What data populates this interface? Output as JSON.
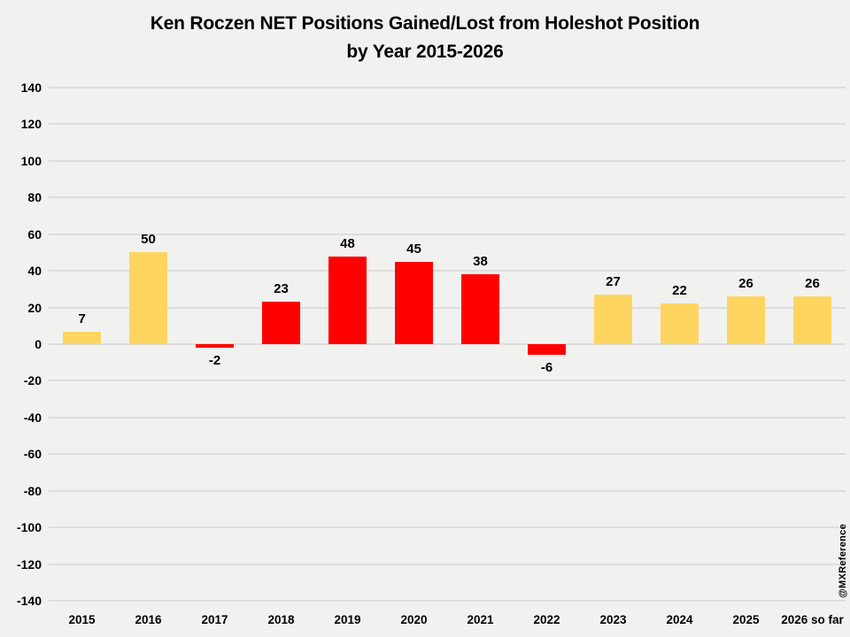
{
  "title": {
    "line1": "Ken Roczen NET Positions Gained/Lost from Holeshot Position",
    "line2": "by Year 2015-2026"
  },
  "watermark": "@MXReference",
  "chart_data": {
    "type": "bar",
    "title": "Ken Roczen NET Positions Gained/Lost from Holeshot Position by Year 2015-2026",
    "categories": [
      "2015",
      "2016",
      "2017",
      "2018",
      "2019",
      "2020",
      "2021",
      "2022",
      "2023",
      "2024",
      "2025",
      "2026 so far"
    ],
    "values": [
      7,
      50,
      -2,
      23,
      48,
      45,
      38,
      -6,
      27,
      22,
      26,
      26
    ],
    "bar_colors": [
      "#ffd55f",
      "#ffd55f",
      "#ff0000",
      "#ff0000",
      "#ff0000",
      "#ff0000",
      "#ff0000",
      "#ff0000",
      "#ffd55f",
      "#ffd55f",
      "#ffd55f",
      "#ffd55f"
    ],
    "xlabel": "",
    "ylabel": "",
    "ylim": [
      -140,
      140
    ],
    "ytick_step": 20,
    "grid": true,
    "legend": "none",
    "background_color": "#f1f1f0",
    "gridline_color": "#dddddd",
    "label_color": "#000000"
  }
}
